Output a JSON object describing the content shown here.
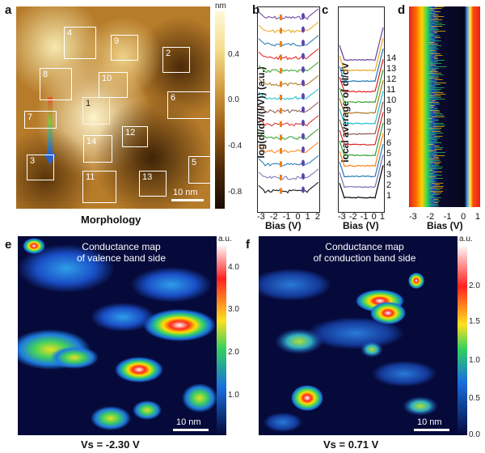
{
  "panels": {
    "a": {
      "label": "a",
      "title": "Morphology",
      "unit": "nm",
      "colorbar_ticks": [
        "0.4",
        "0.0",
        "-0.4",
        "-0.8"
      ],
      "scale_bar": "10 nm",
      "regions": [
        "1",
        "2",
        "3",
        "4",
        "5",
        "6",
        "7",
        "8",
        "9",
        "10",
        "11",
        "12",
        "13",
        "14"
      ]
    },
    "b": {
      "label": "b",
      "ylabel": "log(dI/dV/(I/V)) (a.u.)",
      "xlabel": "Bias (V)",
      "xticks": [
        "-3",
        "-2",
        "-1",
        "0",
        "1",
        "2"
      ]
    },
    "c": {
      "label": "c",
      "ylabel": "local average of dI/dV",
      "xlabel": "Bias (V)",
      "xticks": [
        "-3",
        "-2",
        "-1",
        "0",
        "1"
      ],
      "curve_labels": [
        "14",
        "13",
        "12",
        "11",
        "10",
        "9",
        "8",
        "7",
        "6",
        "5",
        "4",
        "3",
        "2",
        "1"
      ]
    },
    "d": {
      "label": "d",
      "xlabel": "Bias (V)",
      "xticks": [
        "-3",
        "-2",
        "-1",
        "0",
        "1"
      ]
    },
    "e": {
      "label": "e",
      "title_line1": "Conductance map",
      "title_line2": "of valence band side",
      "unit": "a.u.",
      "colorbar_ticks": [
        "4.0",
        "3.0",
        "2.0",
        "1.0"
      ],
      "scale_bar": "10 nm",
      "caption": "Vs = -2.30 V"
    },
    "f": {
      "label": "f",
      "title_line1": "Conductance map",
      "title_line2": "of conduction band side",
      "unit": "a.u.",
      "colorbar_ticks": [
        "2.0",
        "1.5",
        "1.0",
        "0.5",
        "0.0"
      ],
      "scale_bar": "10 nm",
      "caption": "Vs = 0.71 V"
    }
  },
  "colors": {
    "curve_colors": [
      "#6a3d9a",
      "#e6a817",
      "#1f78b4",
      "#e31a1c",
      "#33a02c",
      "#a6761d",
      "#17becf",
      "#8c564b",
      "#d62728",
      "#2ca02c",
      "#ff7f0e",
      "#1f77b4",
      "#7570b3",
      "#000000"
    ]
  }
}
